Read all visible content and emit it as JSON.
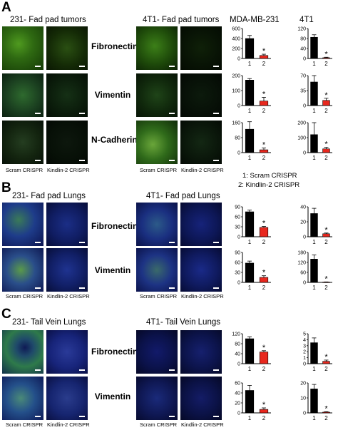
{
  "panels": [
    {
      "letter": "A",
      "left_title": "231- Fad pad tumors",
      "right_title": "4T1- Fad pad tumors",
      "markers": [
        "Fibronectin",
        "Vimentin",
        "N-Cadherin"
      ],
      "col_labels": [
        "Scram CRISPR",
        "Kindlin-2 CRISPR"
      ],
      "chart_titles": [
        "MDA-MB-231",
        "4T1"
      ]
    },
    {
      "letter": "B",
      "left_title": "231- Fad pad Lungs",
      "right_title": "4T1- Fad pad Lungs",
      "markers": [
        "Fibronectin",
        "Vimentin"
      ],
      "col_labels": [
        "Scram CRISPR",
        "Kindlin-2 CRISPR"
      ]
    },
    {
      "letter": "C",
      "left_title": "231- Tail Vein Lungs",
      "right_title": "4T1- Tail Vein Lungs",
      "markers": [
        "Fibronectin",
        "Vimentin"
      ],
      "col_labels": [
        "Scram CRISPR",
        "Kindlin-2 CRISPR"
      ]
    }
  ],
  "legend": [
    "1: Scram CRISPR",
    "2: Kindlin-2 CRISPR"
  ],
  "colors": {
    "control_bar": "#000000",
    "knockdown_bar": "#e8281e"
  },
  "chart_data": [
    {
      "type": "bar",
      "panel": "A",
      "title": "MDA-MB-231",
      "marker": "Fibronectin",
      "categories": [
        "1",
        "2"
      ],
      "values": [
        400,
        60
      ],
      "errors": [
        60,
        25
      ],
      "ylim": [
        0,
        600
      ],
      "yticks": [
        0,
        200,
        400,
        600
      ],
      "significance": [
        "",
        "*"
      ]
    },
    {
      "type": "bar",
      "panel": "A",
      "title": "4T1",
      "marker": "Fibronectin",
      "categories": [
        "1",
        "2"
      ],
      "values": [
        85,
        3
      ],
      "errors": [
        10,
        2
      ],
      "ylim": [
        0,
        120
      ],
      "yticks": [
        0,
        40,
        80,
        120
      ],
      "significance": [
        "",
        "*"
      ]
    },
    {
      "type": "bar",
      "panel": "A",
      "marker": "Vimentin",
      "categories": [
        "1",
        "2"
      ],
      "values": [
        170,
        30
      ],
      "errors": [
        10,
        25
      ],
      "ylim": [
        0,
        200
      ],
      "yticks": [
        0,
        100,
        200
      ],
      "significance": [
        "",
        "*"
      ]
    },
    {
      "type": "bar",
      "panel": "A",
      "marker": "Vimentin",
      "categories": [
        "1",
        "2"
      ],
      "values": [
        55,
        12
      ],
      "errors": [
        15,
        5
      ],
      "ylim": [
        0,
        70
      ],
      "yticks": [
        0,
        35,
        70
      ],
      "significance": [
        "",
        "*"
      ]
    },
    {
      "type": "bar",
      "panel": "A",
      "marker": "N-Cadherin",
      "categories": [
        "1",
        "2"
      ],
      "values": [
        125,
        15
      ],
      "errors": [
        40,
        10
      ],
      "ylim": [
        0,
        160
      ],
      "yticks": [
        0,
        80,
        160
      ],
      "significance": [
        "",
        "*"
      ]
    },
    {
      "type": "bar",
      "panel": "A",
      "marker": "N-Cadherin",
      "categories": [
        "1",
        "2"
      ],
      "values": [
        120,
        25
      ],
      "errors": [
        80,
        10
      ],
      "ylim": [
        0,
        200
      ],
      "yticks": [
        0,
        100,
        200
      ],
      "significance": [
        "",
        "*"
      ]
    },
    {
      "type": "bar",
      "panel": "B",
      "marker": "Fibronectin",
      "categories": [
        "1",
        "2"
      ],
      "values": [
        75,
        28
      ],
      "errors": [
        5,
        3
      ],
      "ylim": [
        0,
        90
      ],
      "yticks": [
        0,
        30,
        60,
        90
      ],
      "significance": [
        "",
        "*"
      ]
    },
    {
      "type": "bar",
      "panel": "B",
      "marker": "Fibronectin",
      "categories": [
        "1",
        "2"
      ],
      "values": [
        31,
        4
      ],
      "errors": [
        7,
        1
      ],
      "ylim": [
        0,
        40
      ],
      "yticks": [
        0,
        20,
        40
      ],
      "significance": [
        "",
        "*"
      ]
    },
    {
      "type": "bar",
      "panel": "B",
      "marker": "Vimentin",
      "categories": [
        "1",
        "2"
      ],
      "values": [
        58,
        15
      ],
      "errors": [
        6,
        5
      ],
      "ylim": [
        0,
        90
      ],
      "yticks": [
        0,
        30,
        60,
        90
      ],
      "significance": [
        "",
        "*"
      ]
    },
    {
      "type": "bar",
      "panel": "B",
      "marker": "Vimentin",
      "categories": [
        "1",
        "2"
      ],
      "values": [
        140,
        2
      ],
      "errors": [
        25,
        1
      ],
      "ylim": [
        0,
        180
      ],
      "yticks": [
        0,
        60,
        120,
        180
      ],
      "significance": [
        "",
        "*"
      ]
    },
    {
      "type": "bar",
      "panel": "C",
      "marker": "Fibronectin",
      "categories": [
        "1",
        "2"
      ],
      "values": [
        100,
        47
      ],
      "errors": [
        8,
        5
      ],
      "ylim": [
        0,
        120
      ],
      "yticks": [
        0,
        40,
        80,
        120
      ],
      "significance": [
        "",
        "*"
      ]
    },
    {
      "type": "bar",
      "panel": "C",
      "marker": "Fibronectin",
      "categories": [
        "1",
        "2"
      ],
      "values": [
        3.5,
        0.4
      ],
      "errors": [
        0.8,
        0.2
      ],
      "ylim": [
        0,
        5
      ],
      "yticks": [
        0,
        1,
        2,
        3,
        4,
        5
      ],
      "significance": [
        "",
        "*"
      ]
    },
    {
      "type": "bar",
      "panel": "C",
      "marker": "Vimentin",
      "categories": [
        "1",
        "2"
      ],
      "values": [
        45,
        7
      ],
      "errors": [
        10,
        3
      ],
      "ylim": [
        0,
        60
      ],
      "yticks": [
        0,
        20,
        40,
        60
      ],
      "significance": [
        "",
        "*"
      ]
    },
    {
      "type": "bar",
      "panel": "C",
      "marker": "Vimentin",
      "categories": [
        "1",
        "2"
      ],
      "values": [
        16,
        0.5
      ],
      "errors": [
        3,
        0.3
      ],
      "ylim": [
        0,
        20
      ],
      "yticks": [
        0,
        10,
        20
      ],
      "significance": [
        "",
        "*"
      ]
    }
  ]
}
